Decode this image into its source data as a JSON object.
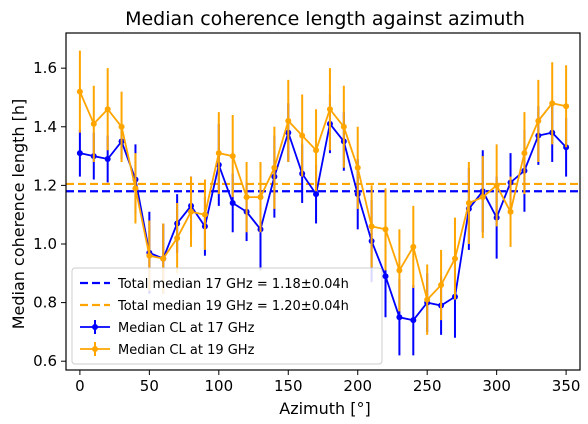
{
  "chart_data": {
    "type": "line",
    "title": "Median coherence length against azimuth",
    "xlabel": "Azimuth [°]",
    "ylabel": "Median coherence length [h]",
    "xlim": [
      -10,
      360
    ],
    "ylim": [
      0.57,
      1.72
    ],
    "xticks": [
      0,
      50,
      100,
      150,
      200,
      250,
      300,
      350
    ],
    "yticks": [
      0.6,
      0.8,
      1.0,
      1.2,
      1.4,
      1.6
    ],
    "ytick_labels": [
      "0.6",
      "0.8",
      "1.0",
      "1.2",
      "1.4",
      "1.6"
    ],
    "grid": false,
    "legend_position": "lower-left",
    "hlines": [
      {
        "name": "Total median 17 GHz = 1.18±0.04h",
        "y": 1.18,
        "color": "#0000ff",
        "style": "dashed"
      },
      {
        "name": "Total median 19 GHz = 1.20±0.04h",
        "y": 1.205,
        "color": "#ffa500",
        "style": "dashed"
      }
    ],
    "series": [
      {
        "name": "Median CL at 17 GHz",
        "color": "#0000ff",
        "x": [
          0,
          10,
          20,
          30,
          40,
          50,
          60,
          70,
          80,
          90,
          100,
          110,
          120,
          130,
          140,
          150,
          160,
          170,
          180,
          190,
          200,
          210,
          220,
          230,
          240,
          250,
          260,
          270,
          280,
          290,
          300,
          310,
          320,
          330,
          340,
          350
        ],
        "y": [
          1.31,
          1.3,
          1.29,
          1.35,
          1.22,
          0.97,
          0.95,
          1.07,
          1.13,
          1.06,
          1.27,
          1.14,
          1.11,
          1.05,
          1.23,
          1.38,
          1.24,
          1.17,
          1.41,
          1.35,
          1.17,
          1.01,
          0.89,
          0.75,
          0.74,
          0.8,
          0.79,
          0.82,
          1.12,
          1.18,
          1.09,
          1.21,
          1.25,
          1.37,
          1.38,
          1.33
        ],
        "err": [
          0.08,
          0.08,
          0.08,
          0.06,
          0.12,
          0.14,
          0.12,
          0.1,
          0.1,
          0.1,
          0.14,
          0.1,
          0.1,
          0.14,
          0.14,
          0.1,
          0.1,
          0.1,
          0.1,
          0.1,
          0.12,
          0.14,
          0.14,
          0.13,
          0.12,
          0.1,
          0.1,
          0.14,
          0.14,
          0.14,
          0.14,
          0.1,
          0.14,
          0.1,
          0.1,
          0.1
        ]
      },
      {
        "name": "Median CL at 19 GHz",
        "color": "#ffa500",
        "x": [
          0,
          10,
          20,
          30,
          40,
          50,
          60,
          70,
          80,
          90,
          100,
          110,
          120,
          130,
          140,
          150,
          160,
          170,
          180,
          190,
          200,
          210,
          220,
          230,
          240,
          250,
          260,
          270,
          280,
          290,
          300,
          310,
          320,
          330,
          340,
          350
        ],
        "y": [
          1.52,
          1.41,
          1.46,
          1.4,
          1.19,
          0.96,
          0.95,
          1.02,
          1.11,
          1.1,
          1.31,
          1.3,
          1.16,
          1.16,
          1.26,
          1.42,
          1.37,
          1.32,
          1.46,
          1.4,
          1.26,
          1.06,
          1.05,
          0.91,
          0.99,
          0.81,
          0.86,
          0.95,
          1.14,
          1.16,
          1.2,
          1.11,
          1.31,
          1.42,
          1.48,
          1.47
        ],
        "err": [
          0.14,
          0.13,
          0.14,
          0.12,
          0.12,
          0.12,
          0.12,
          0.12,
          0.12,
          0.12,
          0.14,
          0.14,
          0.12,
          0.12,
          0.14,
          0.14,
          0.14,
          0.14,
          0.14,
          0.14,
          0.14,
          0.14,
          0.14,
          0.14,
          0.14,
          0.12,
          0.12,
          0.14,
          0.14,
          0.14,
          0.14,
          0.12,
          0.14,
          0.14,
          0.14,
          0.14
        ]
      }
    ]
  }
}
